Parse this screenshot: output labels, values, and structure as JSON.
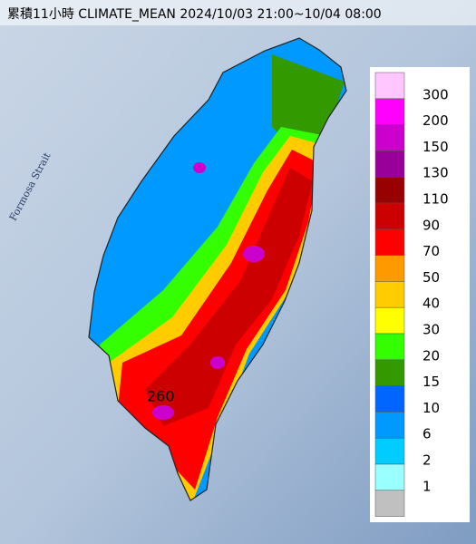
{
  "title": "累積11小時 CLIMATE_MEAN 2024/10/03 21:00~10/04 08:00",
  "sea_label": "Formosa Strait",
  "max_label": "260",
  "legend": {
    "colors": [
      "#ffc6ff",
      "#ff00ff",
      "#cc00cc",
      "#990099",
      "#990000",
      "#cc0000",
      "#ff0000",
      "#ff9900",
      "#ffcc00",
      "#ffff00",
      "#33ff00",
      "#339900",
      "#0066ff",
      "#0099ff",
      "#00ccff",
      "#99ffff",
      "#c0c0c0"
    ],
    "labels": [
      "300",
      "200",
      "150",
      "130",
      "110",
      "90",
      "70",
      "50",
      "40",
      "30",
      "20",
      "15",
      "10",
      "6",
      "2",
      "1"
    ]
  }
}
